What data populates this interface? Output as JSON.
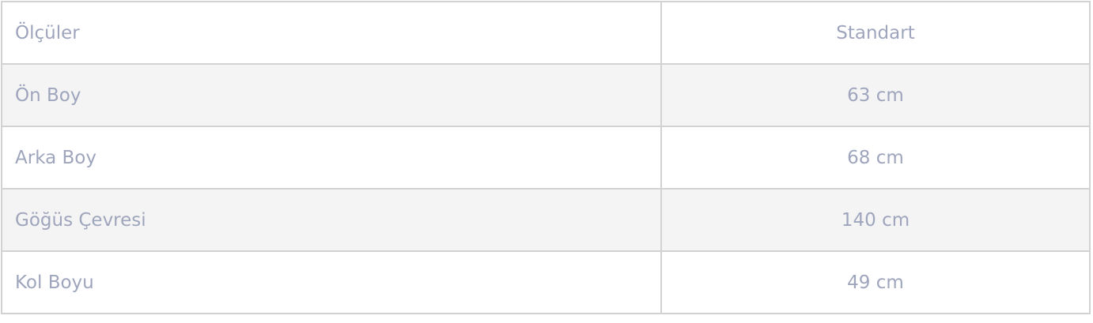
{
  "table": {
    "headers": [
      "Ölçüler",
      "Standart"
    ],
    "rows": [
      [
        "Ön Boy",
        "63 cm"
      ],
      [
        "Arka Boy",
        "68 cm"
      ],
      [
        "Göğüs Çevresi",
        "140 cm"
      ],
      [
        "Kol Boyu",
        "49 cm"
      ]
    ]
  }
}
